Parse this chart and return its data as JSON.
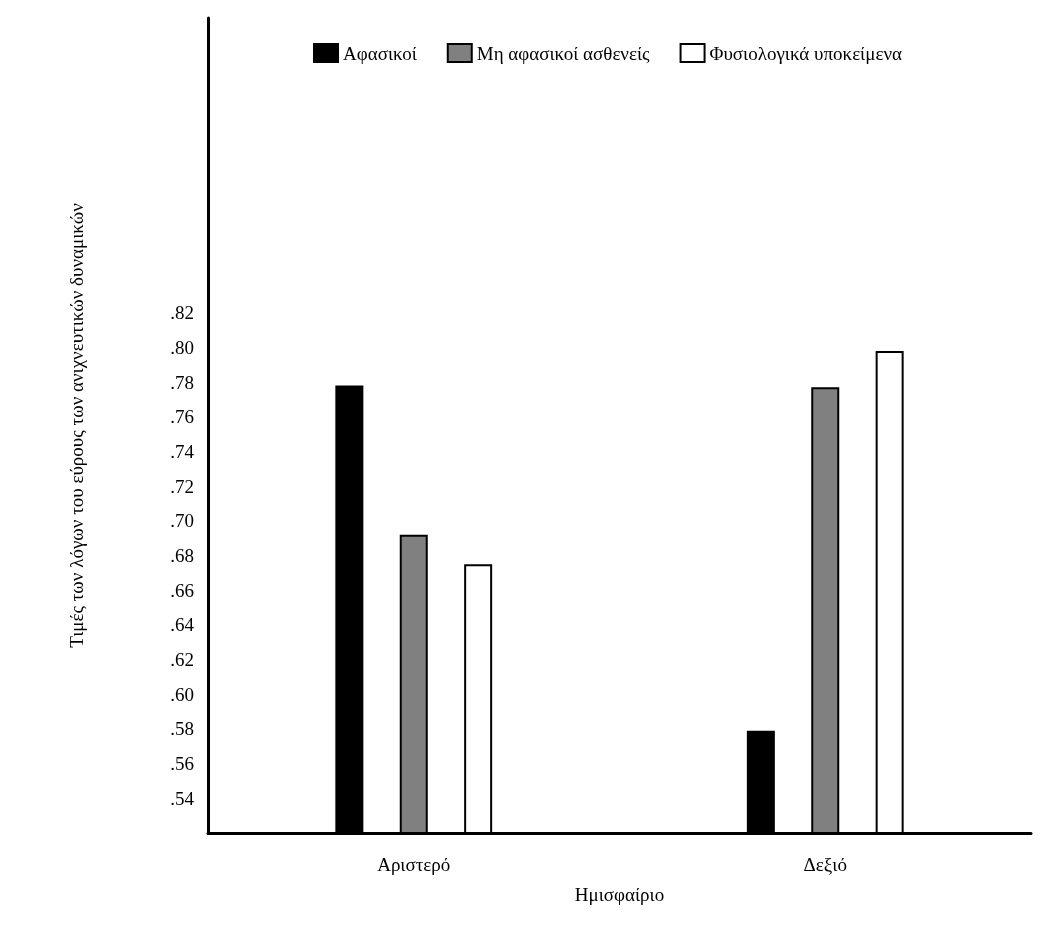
{
  "chart_data": {
    "type": "bar",
    "xlabel": "Ημισφαίριο",
    "ylabel": "Τιμές των λόγων του εύρους των ανιχνευτικών δυναμικών",
    "categories": [
      "Αριστερό",
      "Δεξιό"
    ],
    "series": [
      {
        "name": "Αφασικοί",
        "color": "#000000",
        "values": [
          0.778,
          0.579
        ]
      },
      {
        "name": "Μη αφασικοί ασθενείς",
        "color": "#808080",
        "values": [
          0.692,
          0.777
        ]
      },
      {
        "name": "Φυσιολογικά υποκείμενα",
        "color": "#ffffff",
        "values": [
          0.675,
          0.798
        ]
      }
    ],
    "ylim": [
      0.52,
      0.99
    ],
    "yticks": [
      {
        "value": 0.54,
        "label": ".54"
      },
      {
        "value": 0.56,
        "label": ".56"
      },
      {
        "value": 0.58,
        "label": ".58"
      },
      {
        "value": 0.6,
        "label": ".60"
      },
      {
        "value": 0.62,
        "label": ".62"
      },
      {
        "value": 0.64,
        "label": ".64"
      },
      {
        "value": 0.66,
        "label": ".66"
      },
      {
        "value": 0.68,
        "label": ".68"
      },
      {
        "value": 0.7,
        "label": ".70"
      },
      {
        "value": 0.72,
        "label": ".72"
      },
      {
        "value": 0.74,
        "label": ".74"
      },
      {
        "value": 0.76,
        "label": ".76"
      },
      {
        "value": 0.78,
        "label": ".78"
      },
      {
        "value": 0.8,
        "label": ".80"
      },
      {
        "value": 0.82,
        "label": ".82"
      }
    ],
    "grid": false,
    "legend": "top"
  }
}
